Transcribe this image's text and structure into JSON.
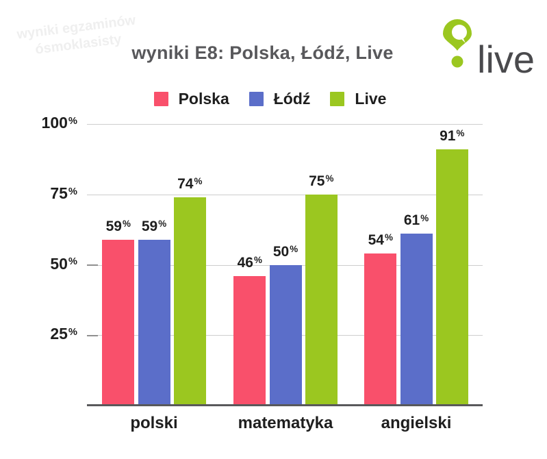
{
  "watermark": {
    "line1": "wyniki egzaminów",
    "line2": "ósmoklasisty"
  },
  "logo": {
    "text": "live",
    "pin_color": "#9BC720",
    "icon": "location-pin-speech-bubble-icon"
  },
  "title_color": "#58585B",
  "chart_data": {
    "type": "bar",
    "title": "wyniki E8: Polska, Łódź, Live",
    "categories": [
      "polski",
      "matematyka",
      "angielski"
    ],
    "series": [
      {
        "name": "Polska",
        "color": "#F9506B",
        "values": [
          59,
          46,
          54
        ]
      },
      {
        "name": "Łódź",
        "color": "#5B6EC9",
        "values": [
          59,
          50,
          61
        ]
      },
      {
        "name": "Live",
        "color": "#9BC720",
        "values": [
          74,
          75,
          91
        ]
      }
    ],
    "value_suffix": "%",
    "data_labels": true,
    "ylim": [
      0,
      100
    ],
    "yticks": [
      25,
      50,
      75,
      100
    ],
    "ytick_suffix": "%",
    "grid": true,
    "legend_position": "top"
  }
}
